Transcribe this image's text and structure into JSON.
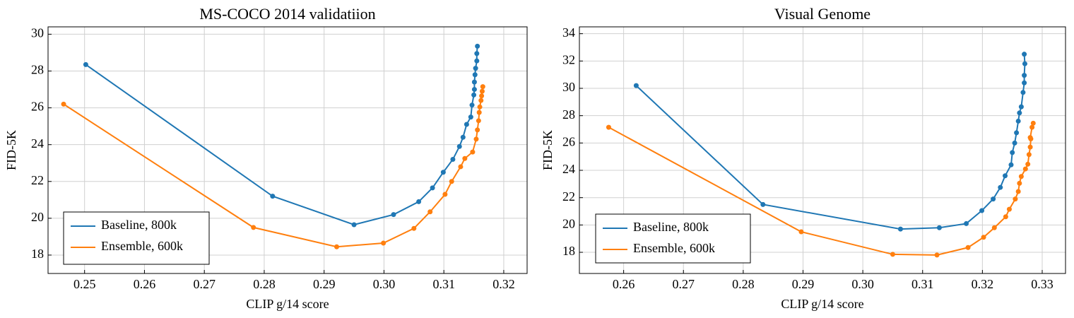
{
  "chart_data": [
    {
      "type": "line",
      "title": "MS-COCO 2014 validatiion",
      "x_label": "CLIP g/14 score",
      "y_label": "FID-5K",
      "xlim": [
        0.2439,
        0.3239
      ],
      "ylim": [
        17,
        30.4
      ],
      "xticks": [
        0.25,
        0.26,
        0.27,
        0.28,
        0.29,
        {
          "value": 0.3,
          "label": "0.30"
        },
        0.31,
        0.32
      ],
      "yticks": [
        18,
        20,
        22,
        24,
        26,
        28,
        30
      ],
      "grid": true,
      "legend": "lower left",
      "series": [
        {
          "name": "Baseline, 800k",
          "color": "#1f77b4",
          "x": [
            0.2502,
            0.2814,
            0.295,
            0.3016,
            0.3058,
            0.3081,
            0.3099,
            0.3115,
            0.3126,
            0.3132,
            0.3138,
            0.3145,
            0.3147,
            0.315,
            0.3151,
            0.3151,
            0.3152,
            0.3153,
            0.3155,
            0.3155,
            0.3156
          ],
          "values": [
            28.35,
            21.2,
            19.65,
            20.2,
            20.9,
            21.65,
            22.5,
            23.2,
            23.9,
            24.4,
            25.1,
            25.5,
            26.15,
            26.7,
            27.0,
            27.4,
            27.8,
            28.15,
            28.55,
            28.95,
            29.35
          ]
        },
        {
          "name": "Ensemble, 600k",
          "color": "#ff7f0e",
          "x": [
            0.2465,
            0.2782,
            0.2921,
            0.2999,
            0.305,
            0.3077,
            0.3102,
            0.3113,
            0.3128,
            0.3135,
            0.3148,
            0.3154,
            0.3156,
            0.3158,
            0.3159,
            0.316,
            0.3162,
            0.3163,
            0.3164,
            0.3165
          ],
          "values": [
            26.2,
            19.5,
            18.45,
            18.65,
            19.45,
            20.35,
            21.3,
            22.0,
            22.8,
            23.25,
            23.6,
            24.3,
            24.8,
            25.3,
            25.75,
            26.05,
            26.4,
            26.65,
            26.9,
            27.15
          ]
        }
      ]
    },
    {
      "type": "line",
      "title": "Visual Genome",
      "x_label": "CLIP g/14 score",
      "y_label": "FID-5K",
      "xlim": [
        0.2526,
        0.3339
      ],
      "ylim": [
        16.45,
        34.5
      ],
      "xticks": [
        0.26,
        0.27,
        0.28,
        0.29,
        {
          "value": 0.3,
          "label": "0.30"
        },
        0.31,
        0.32,
        0.33
      ],
      "yticks": [
        18,
        20,
        22,
        24,
        26,
        28,
        30,
        32,
        34
      ],
      "grid": true,
      "legend": "lower left",
      "series": [
        {
          "name": "Baseline, 800k",
          "color": "#1f77b4",
          "x": [
            0.2621,
            0.2833,
            0.3063,
            0.3128,
            0.3173,
            0.3199,
            0.3218,
            0.323,
            0.3238,
            0.3248,
            0.325,
            0.3254,
            0.3257,
            0.326,
            0.3262,
            0.3265,
            0.3268,
            0.327,
            0.327,
            0.3271,
            0.327
          ],
          "values": [
            30.2,
            21.5,
            19.7,
            19.8,
            20.1,
            21.05,
            21.9,
            22.75,
            23.6,
            24.4,
            25.3,
            26.0,
            26.75,
            27.6,
            28.2,
            28.65,
            29.7,
            30.4,
            30.95,
            31.8,
            32.5
          ]
        },
        {
          "name": "Ensemble, 600k",
          "color": "#ff7f0e",
          "x": [
            0.2575,
            0.2897,
            0.305,
            0.3124,
            0.3176,
            0.3202,
            0.322,
            0.3239,
            0.3245,
            0.3255,
            0.326,
            0.3262,
            0.3265,
            0.3272,
            0.3276,
            0.3278,
            0.328,
            0.3281,
            0.328,
            0.3283,
            0.3285
          ],
          "values": [
            27.15,
            19.5,
            17.85,
            17.8,
            18.35,
            19.1,
            19.8,
            20.6,
            21.15,
            21.9,
            22.45,
            23.05,
            23.55,
            24.1,
            24.45,
            25.15,
            25.7,
            26.3,
            26.4,
            27.15,
            27.45
          ]
        }
      ]
    }
  ]
}
